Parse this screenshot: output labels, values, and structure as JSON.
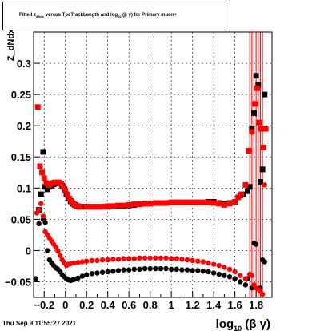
{
  "figure": {
    "title_prefix": "Fitted  z",
    "title_sub": "dNdx",
    "title_mid": " versus TpcTrackLength and log",
    "title_sub2": "10",
    "title_suffix": " (β γ) for Primary muon+",
    "datestamp": "Thu Sep  9 11:55:27 2021"
  },
  "chart_data": {
    "type": "scatter",
    "title": "Fitted z_dNdx versus TpcTrackLength and log10 (β γ) for Primary muon+",
    "xlabel_main": "log",
    "xlabel_sub": "10",
    "xlabel_tail": " (β γ)",
    "ylabel": "Z_dNdx",
    "xlim": [
      -0.3,
      1.95
    ],
    "ylim": [
      -0.075,
      0.35
    ],
    "xticks": [
      {
        "v": -0.2,
        "label": "−0.2"
      },
      {
        "v": 0,
        "label": "0"
      },
      {
        "v": 0.2,
        "label": "0.2"
      },
      {
        "v": 0.4,
        "label": "0.4"
      },
      {
        "v": 0.6,
        "label": "0.6"
      },
      {
        "v": 0.8,
        "label": "0.8"
      },
      {
        "v": 1.0,
        "label": "1"
      },
      {
        "v": 1.2,
        "label": "1.2"
      },
      {
        "v": 1.4,
        "label": "1.4"
      },
      {
        "v": 1.6,
        "label": "1.6"
      },
      {
        "v": 1.8,
        "label": "1.8"
      }
    ],
    "yticks": [
      {
        "v": -0.05,
        "label": "−0.05"
      },
      {
        "v": 0,
        "label": "0"
      },
      {
        "v": 0.05,
        "label": "0.05"
      },
      {
        "v": 0.1,
        "label": "0.1"
      },
      {
        "v": 0.15,
        "label": "0.15"
      },
      {
        "v": 0.2,
        "label": "0.2"
      },
      {
        "v": 0.25,
        "label": "0.25"
      },
      {
        "v": 0.3,
        "label": "0.3"
      }
    ],
    "grid": true,
    "colors": {
      "series_black": "#000000",
      "series_red": "#ff0000"
    },
    "series": [
      {
        "color": "#000000",
        "marker": "square",
        "points": [
          [
            -0.25,
            0.065
          ],
          [
            -0.23,
            0.09
          ],
          [
            -0.21,
            0.158
          ],
          [
            -0.19,
            0.102
          ],
          [
            -0.17,
            0.098
          ],
          [
            -0.15,
            0.102
          ],
          [
            -0.13,
            0.104
          ],
          [
            -0.11,
            0.106
          ],
          [
            -0.09,
            0.108
          ],
          [
            -0.07,
            0.108
          ],
          [
            -0.05,
            0.107
          ],
          [
            -0.03,
            0.104
          ],
          [
            -0.01,
            0.098
          ],
          [
            0.01,
            0.09
          ],
          [
            0.03,
            0.083
          ],
          [
            0.05,
            0.079
          ],
          [
            0.07,
            0.075
          ],
          [
            0.09,
            0.073
          ],
          [
            0.11,
            0.071
          ],
          [
            0.13,
            0.07
          ],
          [
            0.15,
            0.07
          ],
          [
            0.2,
            0.07
          ],
          [
            0.25,
            0.07
          ],
          [
            0.3,
            0.07
          ],
          [
            0.35,
            0.07
          ],
          [
            0.4,
            0.07
          ],
          [
            0.45,
            0.071
          ],
          [
            0.5,
            0.071
          ],
          [
            0.55,
            0.071
          ],
          [
            0.6,
            0.072
          ],
          [
            0.65,
            0.073
          ],
          [
            0.7,
            0.074
          ],
          [
            0.75,
            0.075
          ],
          [
            0.8,
            0.075
          ],
          [
            0.85,
            0.076
          ],
          [
            0.9,
            0.076
          ],
          [
            0.95,
            0.076
          ],
          [
            1.0,
            0.077
          ],
          [
            1.05,
            0.077
          ],
          [
            1.1,
            0.077
          ],
          [
            1.15,
            0.077
          ],
          [
            1.2,
            0.077
          ],
          [
            1.25,
            0.077
          ],
          [
            1.3,
            0.077
          ],
          [
            1.35,
            0.078
          ],
          [
            1.4,
            0.078
          ],
          [
            1.45,
            0.076
          ],
          [
            1.5,
            0.075
          ],
          [
            1.55,
            0.076
          ],
          [
            1.6,
            0.078
          ],
          [
            1.65,
            0.088
          ],
          [
            1.68,
            0.09
          ],
          [
            1.72,
            0.095
          ],
          [
            1.74,
            0.102
          ],
          [
            1.76,
            0.195
          ],
          [
            1.78,
            0.22
          ],
          [
            1.8,
            0.28
          ],
          [
            1.82,
            0.265
          ],
          [
            1.84,
            0.11
          ],
          [
            1.86,
            0.13
          ],
          [
            1.88,
            0.25
          ]
        ]
      },
      {
        "color": "#000000",
        "marker": "circle",
        "points": [
          [
            -0.28,
            -0.045
          ],
          [
            -0.25,
            0.043
          ],
          [
            -0.23,
            0.09
          ],
          [
            -0.21,
            0.05
          ],
          [
            -0.19,
            0.045
          ],
          [
            -0.17,
            0.0
          ],
          [
            -0.15,
            -0.015
          ],
          [
            -0.13,
            -0.02
          ],
          [
            -0.11,
            -0.024
          ],
          [
            -0.09,
            -0.028
          ],
          [
            -0.07,
            -0.03
          ],
          [
            -0.05,
            -0.034
          ],
          [
            -0.03,
            -0.039
          ],
          [
            -0.01,
            -0.042
          ],
          [
            0.01,
            -0.045
          ],
          [
            0.03,
            -0.047
          ],
          [
            0.05,
            -0.048
          ],
          [
            0.07,
            -0.047
          ],
          [
            0.09,
            -0.046
          ],
          [
            0.12,
            -0.044
          ],
          [
            0.16,
            -0.041
          ],
          [
            0.2,
            -0.039
          ],
          [
            0.25,
            -0.037
          ],
          [
            0.3,
            -0.036
          ],
          [
            0.35,
            -0.035
          ],
          [
            0.4,
            -0.034
          ],
          [
            0.45,
            -0.033
          ],
          [
            0.5,
            -0.032
          ],
          [
            0.55,
            -0.031
          ],
          [
            0.6,
            -0.031
          ],
          [
            0.65,
            -0.03
          ],
          [
            0.7,
            -0.03
          ],
          [
            0.75,
            -0.029
          ],
          [
            0.8,
            -0.029
          ],
          [
            0.85,
            -0.029
          ],
          [
            0.9,
            -0.029
          ],
          [
            0.95,
            -0.029
          ],
          [
            1.0,
            -0.03
          ],
          [
            1.05,
            -0.03
          ],
          [
            1.1,
            -0.031
          ],
          [
            1.15,
            -0.031
          ],
          [
            1.2,
            -0.032
          ],
          [
            1.25,
            -0.032
          ],
          [
            1.3,
            -0.033
          ],
          [
            1.35,
            -0.034
          ],
          [
            1.4,
            -0.036
          ],
          [
            1.45,
            -0.038
          ],
          [
            1.5,
            -0.04
          ],
          [
            1.55,
            -0.042
          ],
          [
            1.6,
            -0.045
          ],
          [
            1.65,
            -0.05
          ],
          [
            1.7,
            -0.055
          ],
          [
            1.72,
            -0.045
          ],
          [
            1.76,
            -0.06
          ],
          [
            1.78,
            0.012
          ],
          [
            1.8,
            0.01
          ],
          [
            1.84,
            -0.06
          ],
          [
            1.86,
            -0.015
          ],
          [
            1.88,
            -0.018
          ]
        ]
      },
      {
        "color": "#ff0000",
        "marker": "square",
        "points": [
          [
            -0.26,
            0.23
          ],
          [
            -0.24,
            0.135
          ],
          [
            -0.22,
            0.125
          ],
          [
            -0.2,
            0.116
          ],
          [
            -0.18,
            0.108
          ],
          [
            -0.16,
            0.105
          ],
          [
            -0.14,
            0.106
          ],
          [
            -0.12,
            0.108
          ],
          [
            -0.1,
            0.109
          ],
          [
            -0.08,
            0.109
          ],
          [
            -0.06,
            0.109
          ],
          [
            -0.04,
            0.107
          ],
          [
            -0.02,
            0.102
          ],
          [
            0.0,
            0.096
          ],
          [
            0.02,
            0.089
          ],
          [
            0.04,
            0.083
          ],
          [
            0.06,
            0.078
          ],
          [
            0.08,
            0.074
          ],
          [
            0.1,
            0.072
          ],
          [
            0.12,
            0.071
          ],
          [
            0.14,
            0.07
          ],
          [
            0.2,
            0.07
          ],
          [
            0.25,
            0.07
          ],
          [
            0.3,
            0.07
          ],
          [
            0.35,
            0.07
          ],
          [
            0.4,
            0.071
          ],
          [
            0.45,
            0.071
          ],
          [
            0.5,
            0.072
          ],
          [
            0.55,
            0.072
          ],
          [
            0.6,
            0.073
          ],
          [
            0.65,
            0.074
          ],
          [
            0.7,
            0.074
          ],
          [
            0.75,
            0.075
          ],
          [
            0.8,
            0.075
          ],
          [
            0.85,
            0.076
          ],
          [
            0.9,
            0.076
          ],
          [
            0.95,
            0.076
          ],
          [
            1.0,
            0.077
          ],
          [
            1.05,
            0.077
          ],
          [
            1.1,
            0.077
          ],
          [
            1.15,
            0.077
          ],
          [
            1.2,
            0.077
          ],
          [
            1.25,
            0.077
          ],
          [
            1.3,
            0.077
          ],
          [
            1.35,
            0.077
          ],
          [
            1.4,
            0.076
          ],
          [
            1.45,
            0.075
          ],
          [
            1.5,
            0.073
          ],
          [
            1.55,
            0.075
          ],
          [
            1.6,
            0.078
          ],
          [
            1.63,
            0.085
          ],
          [
            1.66,
            0.09
          ],
          [
            1.7,
            0.105
          ],
          [
            1.73,
            0.16
          ],
          [
            1.76,
            0.19
          ],
          [
            1.79,
            0.235
          ],
          [
            1.81,
            0.26
          ],
          [
            1.83,
            0.205
          ],
          [
            1.85,
            0.195
          ],
          [
            1.87,
            0.165
          ],
          [
            1.89,
            0.195
          ]
        ]
      },
      {
        "color": "#ff0000",
        "marker": "circle",
        "points": [
          [
            -0.27,
            0.06
          ],
          [
            -0.25,
            0.065
          ],
          [
            -0.23,
            0.075
          ],
          [
            -0.21,
            0.055
          ],
          [
            -0.19,
            0.03
          ],
          [
            -0.17,
            0.025
          ],
          [
            -0.15,
            0.02
          ],
          [
            -0.13,
            0.015
          ],
          [
            -0.11,
            0.01
          ],
          [
            -0.09,
            0.005
          ],
          [
            -0.07,
            -0.001
          ],
          [
            -0.05,
            -0.008
          ],
          [
            -0.03,
            -0.015
          ],
          [
            -0.01,
            -0.02
          ],
          [
            0.01,
            -0.024
          ],
          [
            0.03,
            -0.022
          ],
          [
            0.05,
            -0.021
          ],
          [
            0.08,
            -0.02
          ],
          [
            0.12,
            -0.019
          ],
          [
            0.16,
            -0.018
          ],
          [
            0.2,
            -0.017
          ],
          [
            0.25,
            -0.016
          ],
          [
            0.3,
            -0.016
          ],
          [
            0.35,
            -0.015
          ],
          [
            0.4,
            -0.015
          ],
          [
            0.45,
            -0.014
          ],
          [
            0.5,
            -0.014
          ],
          [
            0.55,
            -0.013
          ],
          [
            0.6,
            -0.013
          ],
          [
            0.65,
            -0.013
          ],
          [
            0.7,
            -0.012
          ],
          [
            0.75,
            -0.012
          ],
          [
            0.8,
            -0.012
          ],
          [
            0.85,
            -0.012
          ],
          [
            0.9,
            -0.012
          ],
          [
            0.95,
            -0.012
          ],
          [
            1.0,
            -0.013
          ],
          [
            1.05,
            -0.013
          ],
          [
            1.1,
            -0.014
          ],
          [
            1.15,
            -0.015
          ],
          [
            1.2,
            -0.016
          ],
          [
            1.25,
            -0.017
          ],
          [
            1.3,
            -0.018
          ],
          [
            1.35,
            -0.02
          ],
          [
            1.4,
            -0.022
          ],
          [
            1.45,
            -0.024
          ],
          [
            1.5,
            -0.027
          ],
          [
            1.55,
            -0.03
          ],
          [
            1.6,
            -0.034
          ],
          [
            1.65,
            -0.04
          ],
          [
            1.7,
            -0.045
          ],
          [
            1.74,
            -0.038
          ],
          [
            1.76,
            -0.04
          ],
          [
            1.78,
            -0.055
          ],
          [
            1.8,
            -0.06
          ],
          [
            1.82,
            -0.062
          ],
          [
            1.84,
            -0.065
          ],
          [
            1.86,
            -0.07
          ],
          [
            1.88,
            0.105
          ]
        ]
      }
    ],
    "error_bar_x": [
      1.74,
      1.76,
      1.78,
      1.8,
      1.82,
      1.84,
      1.86
    ]
  }
}
